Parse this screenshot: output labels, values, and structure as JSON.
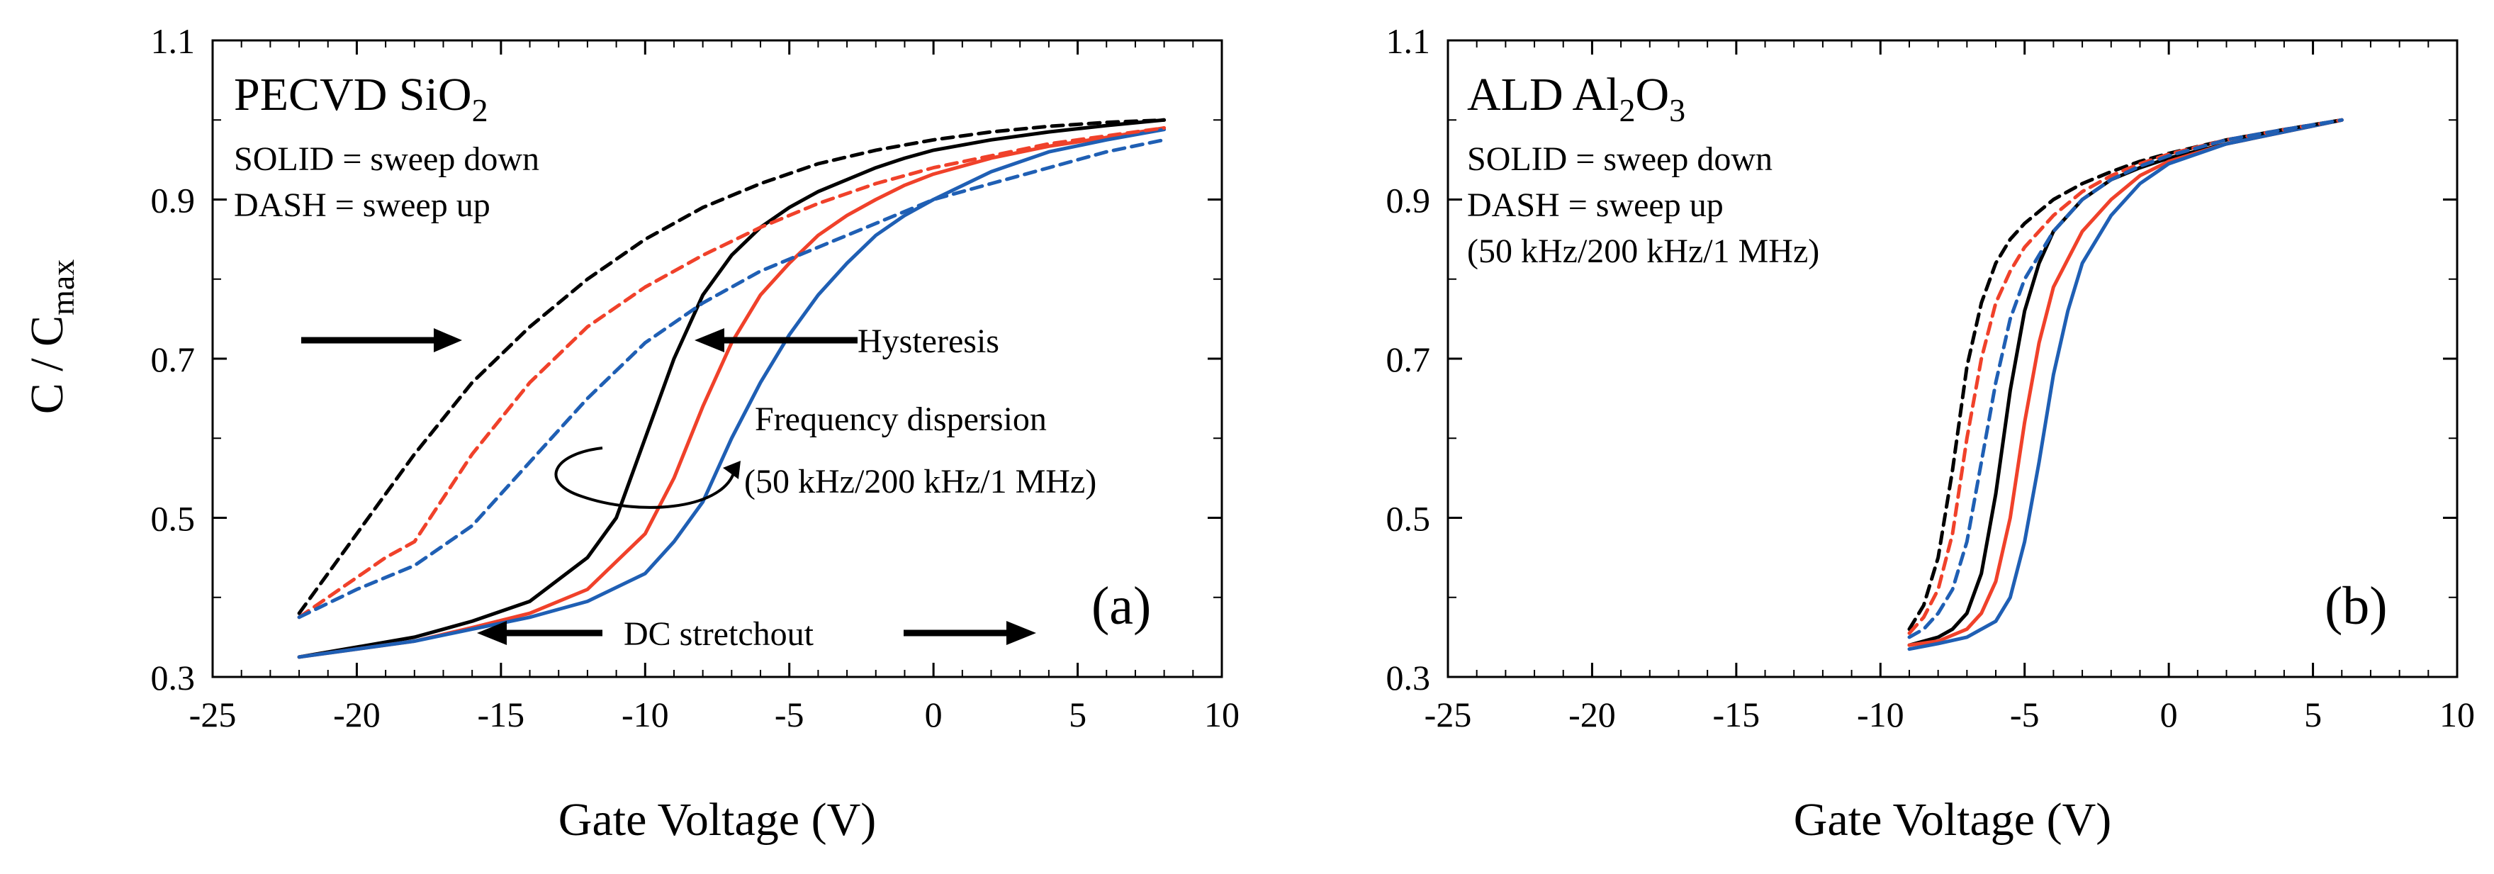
{
  "figure": {
    "shared_ylabel_main": "C / C",
    "shared_ylabel_sub": "max"
  },
  "chart_data": [
    {
      "type": "line",
      "panel_label": "(a)",
      "title_main": "PECVD SiO",
      "title_sub": "2",
      "legend_note": [
        "SOLID = sweep down",
        "DASH = sweep up"
      ],
      "xlabel": "Gate Voltage (V)",
      "ylabel": "C / Cmax",
      "xlim": [
        -25,
        10
      ],
      "ylim": [
        0.3,
        1.1
      ],
      "xticks": [
        "-25",
        "-20",
        "-15",
        "-10",
        "-5",
        "0",
        "5",
        "10"
      ],
      "yticks": [
        "0.3",
        "0.5",
        "0.7",
        "0.9",
        "1.1"
      ],
      "xticks_values": [
        -25,
        -20,
        -15,
        -10,
        -5,
        0,
        5,
        10
      ],
      "yticks_values": [
        0.3,
        0.5,
        0.7,
        0.9,
        1.1
      ],
      "annotations": {
        "hysteresis": "Hysteresis",
        "freq_dispersion": "Frequency dispersion",
        "freq_values": "(50 kHz/200 kHz/1 MHz)",
        "dc_stretchout": "DC stretchout"
      },
      "series": [
        {
          "color": "#000000",
          "style": "solid",
          "x": [
            -22,
            -18,
            -16,
            -14,
            -12,
            -11,
            -10,
            -9,
            -8,
            -7,
            -6,
            -5,
            -4,
            -3,
            -2,
            -1,
            0,
            2,
            4,
            6,
            8
          ],
          "y": [
            0.325,
            0.35,
            0.37,
            0.395,
            0.45,
            0.5,
            0.6,
            0.7,
            0.78,
            0.83,
            0.865,
            0.89,
            0.91,
            0.925,
            0.94,
            0.952,
            0.962,
            0.975,
            0.985,
            0.993,
            1.0
          ]
        },
        {
          "color": "#f0412a",
          "style": "solid",
          "x": [
            -22,
            -18,
            -16,
            -14,
            -12,
            -10,
            -9,
            -8,
            -7,
            -6,
            -5,
            -4,
            -3,
            -2,
            -1,
            0,
            2,
            4,
            6,
            8
          ],
          "y": [
            0.325,
            0.345,
            0.362,
            0.38,
            0.41,
            0.48,
            0.55,
            0.64,
            0.72,
            0.78,
            0.82,
            0.855,
            0.88,
            0.9,
            0.918,
            0.932,
            0.952,
            0.967,
            0.978,
            0.99
          ]
        },
        {
          "color": "#1f5fb4",
          "style": "solid",
          "x": [
            -22,
            -18,
            -16,
            -14,
            -12,
            -10,
            -9,
            -8,
            -7,
            -6,
            -5,
            -4,
            -3,
            -2,
            -1,
            0,
            2,
            4,
            6,
            8
          ],
          "y": [
            0.325,
            0.345,
            0.36,
            0.375,
            0.395,
            0.43,
            0.47,
            0.52,
            0.6,
            0.67,
            0.73,
            0.78,
            0.82,
            0.855,
            0.88,
            0.9,
            0.935,
            0.96,
            0.975,
            0.988
          ]
        },
        {
          "color": "#000000",
          "style": "dash",
          "x": [
            -22,
            -20,
            -18,
            -16,
            -14,
            -12,
            -10,
            -8,
            -6,
            -4,
            -2,
            0,
            2,
            4,
            6,
            8
          ],
          "y": [
            0.38,
            0.48,
            0.58,
            0.67,
            0.74,
            0.8,
            0.85,
            0.89,
            0.92,
            0.945,
            0.962,
            0.975,
            0.985,
            0.992,
            0.997,
            1.0
          ]
        },
        {
          "color": "#f0412a",
          "style": "dash",
          "x": [
            -22,
            -19,
            -18,
            -16,
            -14,
            -12,
            -10,
            -8,
            -6,
            -4,
            -2,
            0,
            2,
            4,
            6,
            8
          ],
          "y": [
            0.375,
            0.45,
            0.47,
            0.58,
            0.67,
            0.74,
            0.79,
            0.83,
            0.865,
            0.895,
            0.92,
            0.94,
            0.955,
            0.97,
            0.98,
            0.99
          ]
        },
        {
          "color": "#1f5fb4",
          "style": "dash",
          "x": [
            -22,
            -20,
            -18,
            -16,
            -14,
            -12,
            -10,
            -8,
            -6,
            -4,
            -2,
            0,
            2,
            4,
            6,
            8
          ],
          "y": [
            0.375,
            0.41,
            0.44,
            0.49,
            0.57,
            0.65,
            0.72,
            0.77,
            0.81,
            0.84,
            0.87,
            0.9,
            0.92,
            0.94,
            0.96,
            0.975
          ]
        }
      ]
    },
    {
      "type": "line",
      "panel_label": "(b)",
      "title_main": "ALD Al",
      "title_sub1": "2",
      "title_mid": "O",
      "title_sub2": "3",
      "legend_note": [
        "SOLID = sweep down",
        "DASH = sweep up",
        "(50 kHz/200 kHz/1 MHz)"
      ],
      "xlabel": "Gate Voltage (V)",
      "xlim": [
        -25,
        10
      ],
      "ylim": [
        0.3,
        1.1
      ],
      "xticks": [
        "-25",
        "-20",
        "-15",
        "-10",
        "-5",
        "0",
        "5",
        "10"
      ],
      "yticks": [
        "0.3",
        "0.5",
        "0.7",
        "0.9",
        "1.1"
      ],
      "xticks_values": [
        -25,
        -20,
        -15,
        -10,
        -5,
        0,
        5,
        10
      ],
      "yticks_values": [
        0.3,
        0.5,
        0.7,
        0.9,
        1.1
      ],
      "series": [
        {
          "color": "#000000",
          "style": "solid",
          "x": [
            -9,
            -8,
            -7.5,
            -7,
            -6.5,
            -6,
            -5.5,
            -5,
            -4.5,
            -4,
            -3,
            -2,
            -1,
            0,
            2,
            4,
            6
          ],
          "y": [
            0.34,
            0.35,
            0.36,
            0.38,
            0.43,
            0.53,
            0.66,
            0.76,
            0.82,
            0.86,
            0.9,
            0.925,
            0.94,
            0.952,
            0.97,
            0.985,
            1.0
          ]
        },
        {
          "color": "#f0412a",
          "style": "solid",
          "x": [
            -9,
            -8,
            -7,
            -6.5,
            -6,
            -5.5,
            -5,
            -4.5,
            -4,
            -3,
            -2,
            -1,
            0,
            2,
            4,
            6
          ],
          "y": [
            0.34,
            0.345,
            0.36,
            0.38,
            0.42,
            0.5,
            0.62,
            0.72,
            0.79,
            0.86,
            0.9,
            0.93,
            0.948,
            0.97,
            0.985,
            1.0
          ]
        },
        {
          "color": "#1f5fb4",
          "style": "solid",
          "x": [
            -9,
            -8,
            -7,
            -6,
            -5.5,
            -5,
            -4.5,
            -4,
            -3.5,
            -3,
            -2,
            -1,
            0,
            2,
            4,
            6
          ],
          "y": [
            0.335,
            0.342,
            0.35,
            0.37,
            0.4,
            0.47,
            0.57,
            0.68,
            0.76,
            0.82,
            0.88,
            0.92,
            0.945,
            0.97,
            0.985,
            1.0
          ]
        },
        {
          "color": "#000000",
          "style": "dash",
          "x": [
            -9,
            -8.5,
            -8,
            -7.5,
            -7,
            -6.5,
            -6,
            -5.5,
            -5,
            -4,
            -3,
            -2,
            -1,
            0,
            2,
            4,
            6
          ],
          "y": [
            0.36,
            0.39,
            0.45,
            0.56,
            0.69,
            0.77,
            0.82,
            0.85,
            0.87,
            0.9,
            0.92,
            0.935,
            0.948,
            0.958,
            0.975,
            0.988,
            1.0
          ]
        },
        {
          "color": "#f0412a",
          "style": "dash",
          "x": [
            -9,
            -8.5,
            -8,
            -7.5,
            -7,
            -6.5,
            -6,
            -5.5,
            -5,
            -4,
            -3,
            -2,
            -1,
            0,
            2,
            4,
            6
          ],
          "y": [
            0.355,
            0.375,
            0.41,
            0.48,
            0.6,
            0.7,
            0.77,
            0.81,
            0.84,
            0.88,
            0.91,
            0.93,
            0.945,
            0.957,
            0.975,
            0.988,
            1.0
          ]
        },
        {
          "color": "#1f5fb4",
          "style": "dash",
          "x": [
            -9,
            -8.5,
            -8,
            -7.5,
            -7,
            -6.5,
            -6,
            -5.5,
            -5,
            -4,
            -3,
            -2,
            -1,
            0,
            2,
            4,
            6
          ],
          "y": [
            0.35,
            0.36,
            0.38,
            0.41,
            0.47,
            0.57,
            0.67,
            0.75,
            0.8,
            0.86,
            0.9,
            0.925,
            0.942,
            0.955,
            0.975,
            0.988,
            1.0
          ]
        }
      ]
    }
  ]
}
